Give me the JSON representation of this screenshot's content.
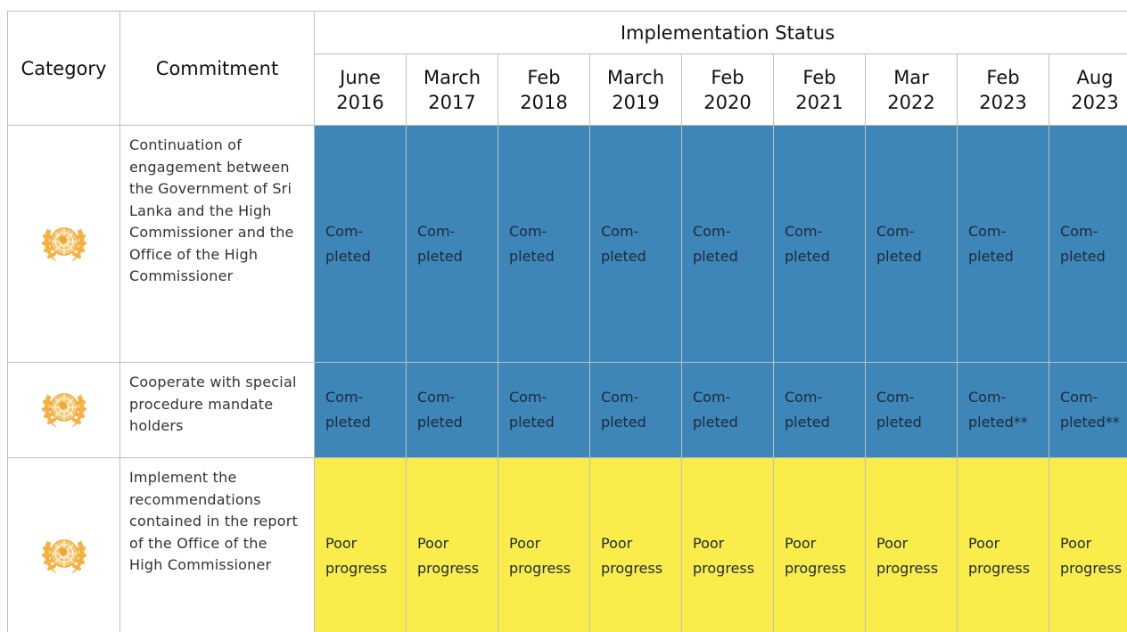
{
  "table": {
    "header": {
      "category": "Category",
      "commitment": "Commitment",
      "group": "Implementation Status",
      "dates": [
        {
          "month": "June",
          "year": "2016"
        },
        {
          "month": "March",
          "year": "2017"
        },
        {
          "month": "Feb",
          "year": "2018"
        },
        {
          "month": "March",
          "year": "2019"
        },
        {
          "month": "Feb",
          "year": "2020"
        },
        {
          "month": "Feb",
          "year": "2021"
        },
        {
          "month": "Mar",
          "year": "2022"
        },
        {
          "month": "Feb",
          "year": "2023"
        },
        {
          "month": "Aug",
          "year": "2023"
        }
      ]
    },
    "rows": [
      {
        "commitment": "Continuation of engagement between the Government of Sri Lanka and the High Commissioner and the Office of the High Commissioner",
        "color": "#3e85b8",
        "statuses": [
          "Com-pleted",
          "Com-pleted",
          "Com-pleted",
          "Com-pleted",
          "Com-pleted",
          "Com-pleted",
          "Com-pleted",
          "Com-pleted",
          "Com-pleted"
        ]
      },
      {
        "commitment": "Cooperate with special procedure mandate holders",
        "color": "#3e85b8",
        "statuses": [
          "Com-pleted",
          "Com-pleted",
          "Com-pleted",
          "Com-pleted",
          "Com-pleted",
          "Com-pleted",
          "Com-pleted",
          "Com-pleted**",
          "Com-pleted**"
        ]
      },
      {
        "commitment": "Implement the recommendations contained in the report of the Office of the High Commissioner",
        "color": "#f9ec4b",
        "statuses": [
          "Poor progress",
          "Poor progress",
          "Poor progress",
          "Poor progress",
          "Poor progress",
          "Poor progress",
          "Poor progress",
          "Poor progress",
          "Poor progress"
        ]
      }
    ]
  }
}
